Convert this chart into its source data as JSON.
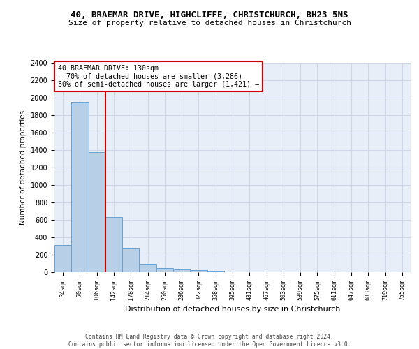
{
  "title1": "40, BRAEMAR DRIVE, HIGHCLIFFE, CHRISTCHURCH, BH23 5NS",
  "title2": "Size of property relative to detached houses in Christchurch",
  "xlabel": "Distribution of detached houses by size in Christchurch",
  "ylabel": "Number of detached properties",
  "bar_labels": [
    "34sqm",
    "70sqm",
    "106sqm",
    "142sqm",
    "178sqm",
    "214sqm",
    "250sqm",
    "286sqm",
    "322sqm",
    "358sqm",
    "395sqm",
    "431sqm",
    "467sqm",
    "503sqm",
    "539sqm",
    "575sqm",
    "611sqm",
    "647sqm",
    "683sqm",
    "719sqm",
    "755sqm"
  ],
  "bar_values": [
    310,
    1950,
    1380,
    630,
    270,
    100,
    48,
    30,
    25,
    20,
    0,
    0,
    0,
    0,
    0,
    0,
    0,
    0,
    0,
    0,
    0
  ],
  "bar_color": "#b8cfe8",
  "bar_edge_color": "#6aa0d0",
  "vline_color": "#cc0000",
  "annotation_text": "40 BRAEMAR DRIVE: 130sqm\n← 70% of detached houses are smaller (3,286)\n30% of semi-detached houses are larger (1,421) →",
  "annotation_box_color": "#cc0000",
  "ylim": [
    0,
    2400
  ],
  "yticks": [
    0,
    200,
    400,
    600,
    800,
    1000,
    1200,
    1400,
    1600,
    1800,
    2000,
    2200,
    2400
  ],
  "grid_color": "#d0d8e8",
  "bg_color": "#e8eef8",
  "footer1": "Contains HM Land Registry data © Crown copyright and database right 2024.",
  "footer2": "Contains public sector information licensed under the Open Government Licence v3.0."
}
